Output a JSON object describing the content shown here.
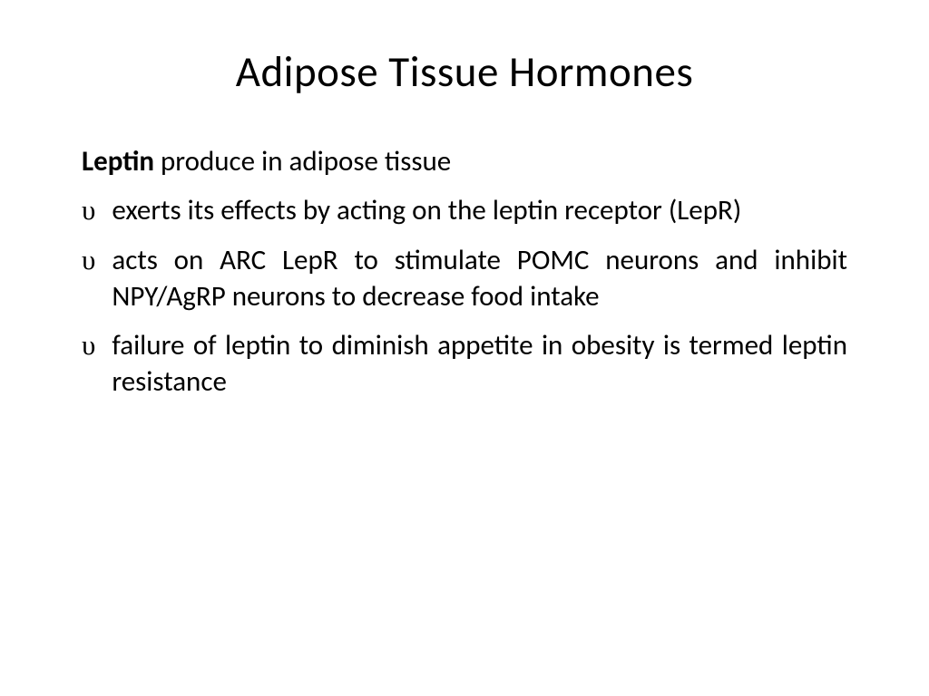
{
  "slide": {
    "title": "Adipose Tissue Hormones",
    "subtitle_bold": "Leptin",
    "subtitle_rest": " produce in adipose tissue",
    "bullet_marker": "υ",
    "bullets": [
      "exerts its effects by acting on the leptin receptor (LepR)",
      "acts on ARC LepR to stimulate POMC neurons and inhibit NPY/AgRP neurons to decrease food intake",
      "failure of leptin to diminish appetite in obesity is termed leptin resistance"
    ]
  },
  "styling": {
    "background_color": "#ffffff",
    "text_color": "#000000",
    "title_fontsize": 47,
    "body_fontsize": 31,
    "font_family": "Calibri"
  }
}
